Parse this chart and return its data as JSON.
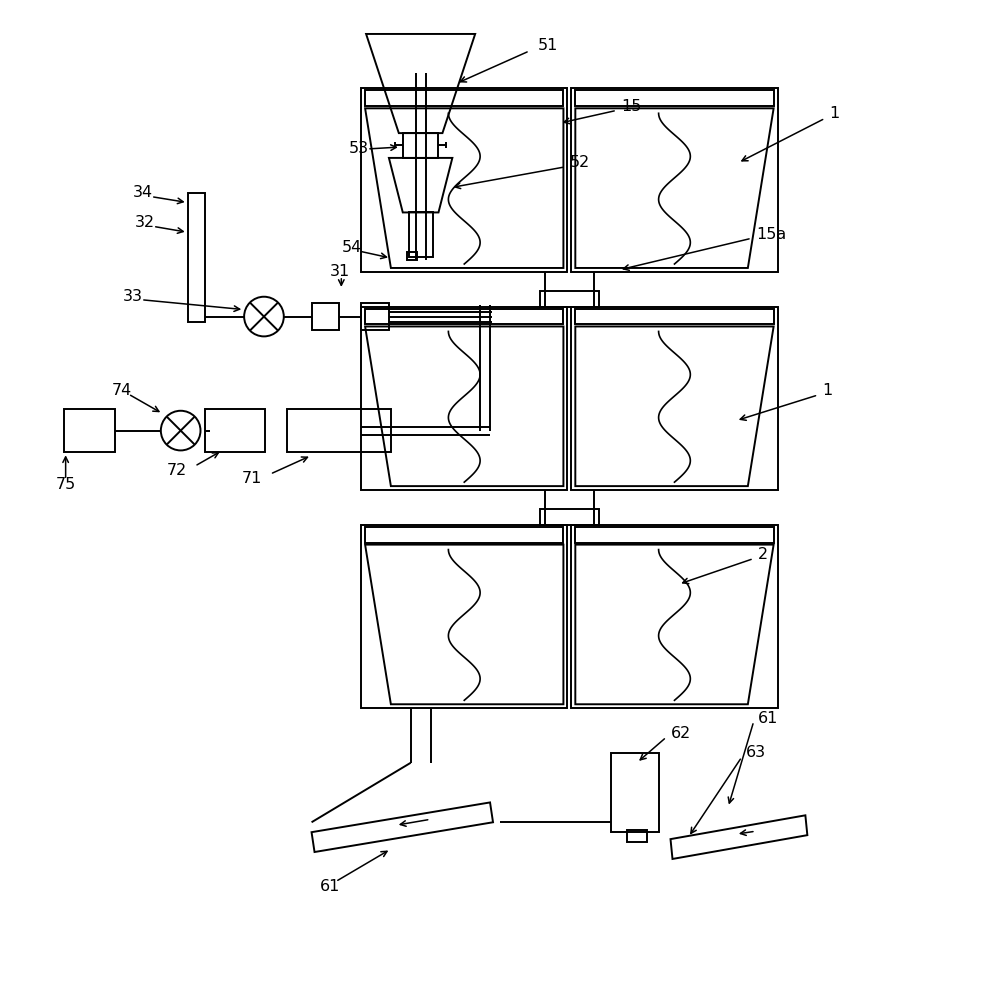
{
  "bg_color": "#ffffff",
  "line_color": "#000000",
  "fig_width": 9.9,
  "fig_height": 10.0,
  "lw": 1.4
}
